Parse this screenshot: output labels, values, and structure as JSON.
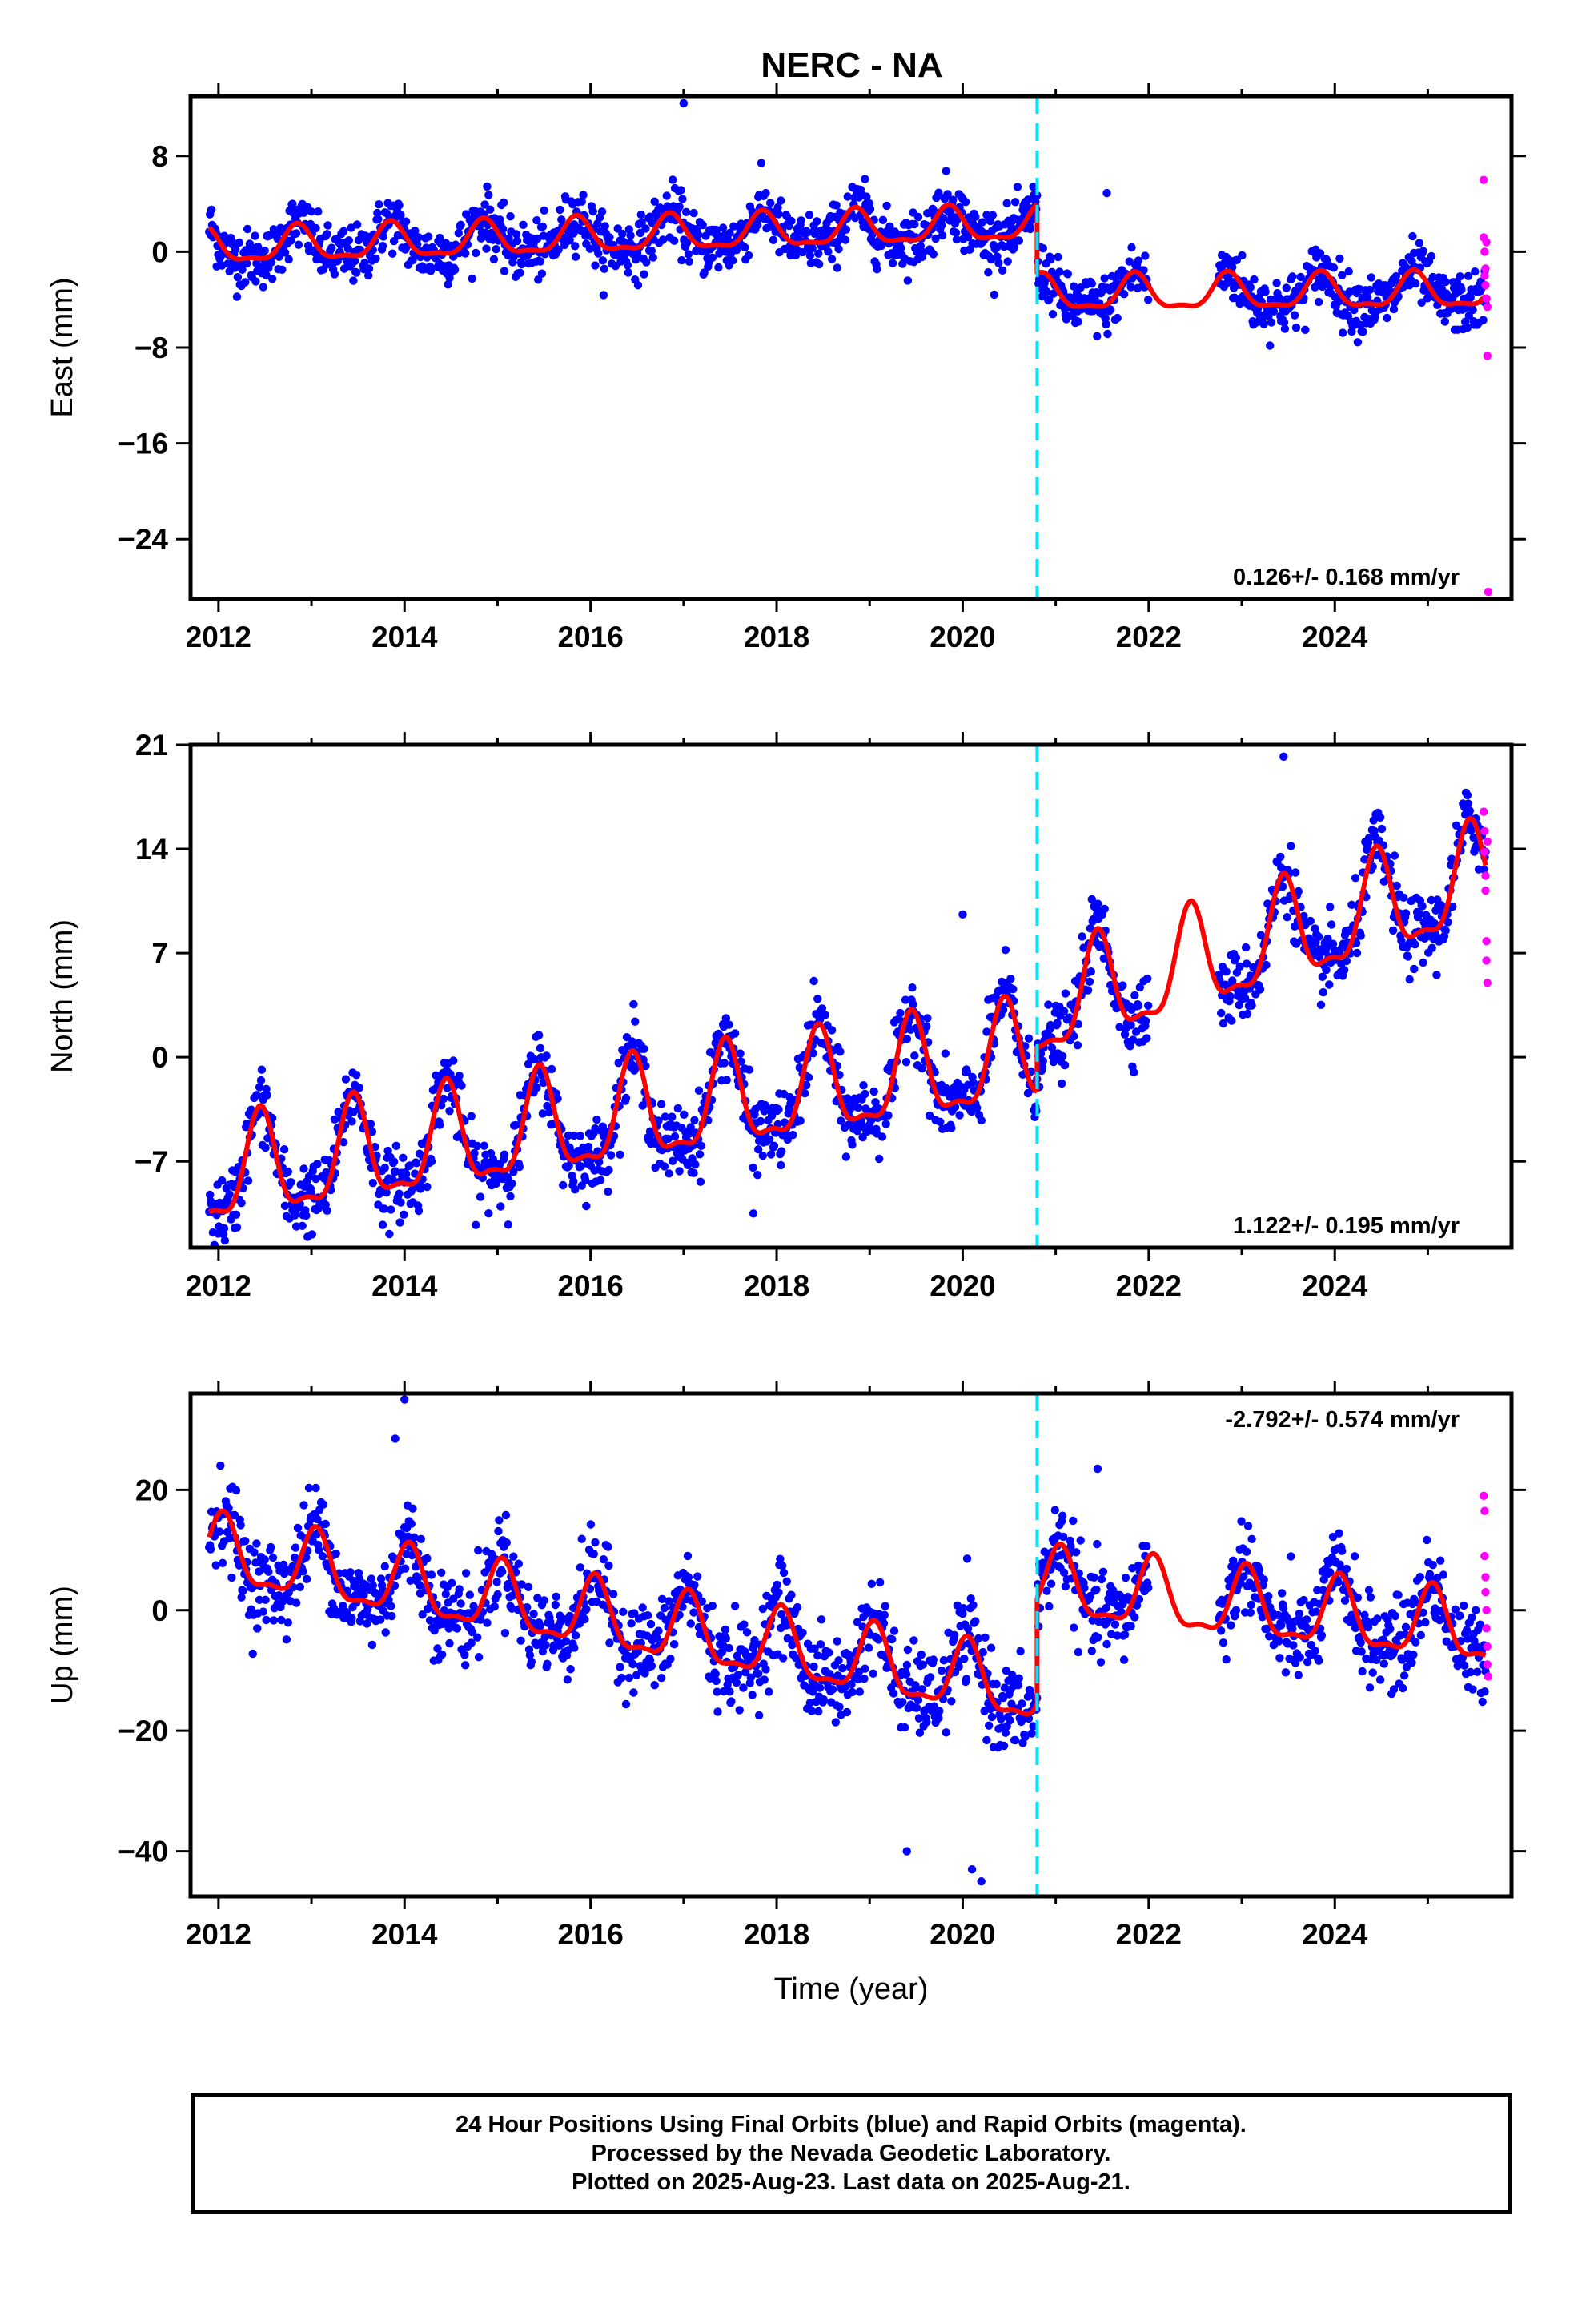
{
  "title": "NERC - NA",
  "caption": {
    "line1": "24 Hour Positions Using Final Orbits (blue) and Rapid Orbits (magenta).",
    "line2": "Processed by the Nevada Geodetic Laboratory.",
    "line3": "Plotted on 2025-Aug-23. Last data on 2025-Aug-21."
  },
  "colors": {
    "final": "#0000ff",
    "rapid": "#ff00ff",
    "model": "#ff0000",
    "equipment_change": "#00e5ff"
  },
  "chart_data": [
    {
      "type": "scatter",
      "panel": "east",
      "ylabel": "East (mm)",
      "xlabel": "",
      "xlim": [
        2011.7,
        2025.9
      ],
      "ylim": [
        -29.0,
        13.0
      ],
      "xticks": [
        2012,
        2014,
        2016,
        2018,
        2020,
        2022,
        2024
      ],
      "yticks": [
        8,
        0,
        -8,
        -16,
        -24
      ],
      "ytick_labels": [
        "8",
        "0",
        "−8",
        "−16",
        "−24"
      ],
      "rate_text": "0.126+/- 0.168 mm/yr",
      "rate_position": "bottom-right",
      "offset_year": 2020.8,
      "final_series": {
        "name": "Final Orbits (blue)",
        "t_start": 2011.9,
        "t_end": 2025.62,
        "segments": [
          {
            "t_from": 2011.9,
            "t_to": 2020.8,
            "base": 0.3,
            "slope": 0.22,
            "amp": 1.4,
            "phase": 0.85
          },
          {
            "t_from": 2020.8,
            "t_to": 2025.62,
            "base": -3.6,
            "slope": 0.05,
            "amp": 1.4,
            "phase": 0.85
          }
        ],
        "noise_sd": 1.5,
        "outliers": [
          [
            2017.0,
            12.4
          ],
          [
            2021.55,
            4.9
          ]
        ]
      },
      "rapid_points": [
        [
          2025.6,
          6.0
        ],
        [
          2025.6,
          1.2
        ],
        [
          2025.61,
          0.0
        ],
        [
          2025.62,
          -1.4
        ],
        [
          2025.62,
          -2.8
        ],
        [
          2025.63,
          -3.9
        ],
        [
          2025.64,
          -4.6
        ],
        [
          2025.61,
          -2.0
        ],
        [
          2025.63,
          0.8
        ],
        [
          2025.64,
          -8.7
        ],
        [
          2025.65,
          -28.4
        ]
      ],
      "model": {
        "name": "Model fit (red)",
        "segments": [
          {
            "t_from": 2011.9,
            "t_to": 2020.8,
            "base": 0.3,
            "slope": 0.22,
            "amp": 1.4,
            "phase": 0.85
          },
          {
            "t_from": 2020.8,
            "t_to": 2025.62,
            "base": -3.6,
            "slope": 0.05,
            "amp": 1.4,
            "phase": 0.85
          }
        ]
      }
    },
    {
      "type": "scatter",
      "panel": "north",
      "ylabel": "North (mm)",
      "xlabel": "",
      "xlim": [
        2011.7,
        2025.9
      ],
      "ylim": [
        -12.8,
        21.0
      ],
      "xticks": [
        2012,
        2014,
        2016,
        2018,
        2020,
        2022,
        2024
      ],
      "yticks": [
        21,
        14,
        7,
        0,
        -7
      ],
      "ytick_labels": [
        "21",
        "14",
        "7",
        "0",
        "−7"
      ],
      "rate_text": "1.122+/- 0.195 mm/yr",
      "rate_position": "bottom-right",
      "offset_year": 2020.8,
      "final_series": {
        "name": "Final Orbits (blue)",
        "t_start": 2011.9,
        "t_end": 2025.62,
        "segments": [
          {
            "t_from": 2011.9,
            "t_to": 2020.8,
            "base": -8.2,
            "slope": 0.92,
            "amp": 3.3,
            "phase": 0.45
          },
          {
            "t_from": 2020.8,
            "t_to": 2025.62,
            "base": 3.0,
            "slope": 1.85,
            "amp": 3.3,
            "phase": 0.45
          }
        ],
        "noise_sd": 1.5,
        "outliers": [
          [
            2023.45,
            20.2
          ],
          [
            2017.75,
            -10.5
          ],
          [
            2020.0,
            9.6
          ]
        ]
      },
      "rapid_points": [
        [
          2025.6,
          16.5
        ],
        [
          2025.61,
          15.2
        ],
        [
          2025.61,
          13.8
        ],
        [
          2025.62,
          12.2
        ],
        [
          2025.62,
          11.2
        ],
        [
          2025.63,
          7.8
        ],
        [
          2025.63,
          6.5
        ],
        [
          2025.64,
          5.0
        ],
        [
          2025.64,
          14.5
        ]
      ],
      "model": {
        "name": "Model fit (red)",
        "segments": [
          {
            "t_from": 2011.9,
            "t_to": 2020.8,
            "base": -8.2,
            "slope": 0.92,
            "amp": 3.3,
            "phase": 0.45
          },
          {
            "t_from": 2020.8,
            "t_to": 2025.62,
            "base": 3.0,
            "slope": 1.85,
            "amp": 3.3,
            "phase": 0.45
          }
        ]
      }
    },
    {
      "type": "scatter",
      "panel": "up",
      "ylabel": "Up (mm)",
      "xlabel": "Time (year)",
      "xlim": [
        2011.7,
        2025.9
      ],
      "ylim": [
        -47.5,
        36.0
      ],
      "xticks": [
        2012,
        2014,
        2016,
        2018,
        2020,
        2022,
        2024
      ],
      "yticks": [
        20,
        0,
        -20,
        -40
      ],
      "ytick_labels": [
        "20",
        "0",
        "−20",
        "−40"
      ],
      "rate_text": "-2.792+/- 0.574 mm/yr",
      "rate_position": "top-right",
      "offset_year": 2020.8,
      "final_series": {
        "name": "Final Orbits (blue)",
        "t_start": 2011.9,
        "t_end": 2025.62,
        "segments": [
          {
            "t_from": 2011.9,
            "t_to": 2020.8,
            "base": 9.5,
            "slope": -2.6,
            "amp": 5.5,
            "phase": 0.05
          },
          {
            "t_from": 2020.8,
            "t_to": 2025.62,
            "base": 4.0,
            "slope": -1.6,
            "amp": 5.5,
            "phase": 0.05
          }
        ],
        "noise_sd": 4.5,
        "outliers": [
          [
            2014.0,
            35.0
          ],
          [
            2013.9,
            28.5
          ],
          [
            2021.45,
            23.5
          ],
          [
            2020.2,
            -45.0
          ],
          [
            2019.4,
            -40.0
          ],
          [
            2020.1,
            -43.0
          ]
        ]
      },
      "rapid_points": [
        [
          2025.6,
          19.0
        ],
        [
          2025.61,
          16.5
        ],
        [
          2025.61,
          9.0
        ],
        [
          2025.62,
          5.5
        ],
        [
          2025.62,
          3.0
        ],
        [
          2025.63,
          0.0
        ],
        [
          2025.63,
          -3.0
        ],
        [
          2025.64,
          -6.0
        ],
        [
          2025.64,
          -9.0
        ],
        [
          2025.65,
          -11.0
        ]
      ],
      "model": {
        "name": "Model fit (red)",
        "segments": [
          {
            "t_from": 2011.9,
            "t_to": 2020.8,
            "base": 9.5,
            "slope": -2.6,
            "amp": 5.5,
            "phase": 0.05
          },
          {
            "t_from": 2020.8,
            "t_to": 2025.62,
            "base": 4.0,
            "slope": -1.6,
            "amp": 5.5,
            "phase": 0.05
          }
        ]
      }
    }
  ]
}
